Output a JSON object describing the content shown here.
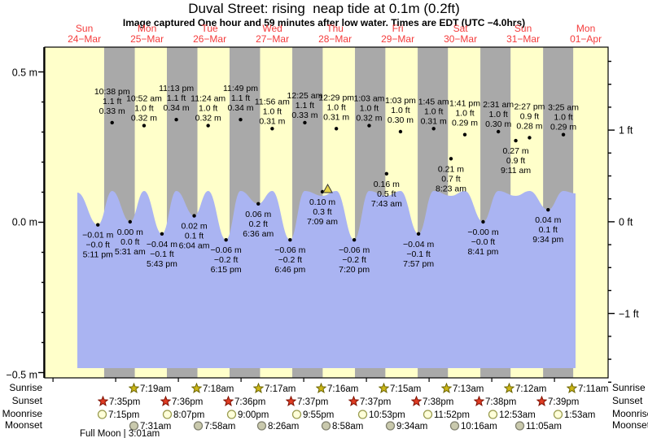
{
  "title": "Duval Street: rising  neap tide at 0.1m (0.2ft)",
  "subtitle": "Image captured One hour and 59 minutes after low water. Times are EDT (UTC −4.0hrs)",
  "chart_data": {
    "type": "area",
    "title": "Duval Street: rising  neap tide at 0.1m (0.2ft)",
    "x_axis_days": [
      {
        "dow": "Sun",
        "date": "24−Mar"
      },
      {
        "dow": "Mon",
        "date": "25−Mar"
      },
      {
        "dow": "Tue",
        "date": "26−Mar"
      },
      {
        "dow": "Wed",
        "date": "27−Mar"
      },
      {
        "dow": "Thu",
        "date": "28−Mar"
      },
      {
        "dow": "Fri",
        "date": "29−Mar"
      },
      {
        "dow": "Sat",
        "date": "30−Mar"
      },
      {
        "dow": "Sun",
        "date": "31−Mar"
      },
      {
        "dow": "Mon",
        "date": "01−Apr"
      }
    ],
    "y_axis_left_ticks": [
      "0.5 m",
      "0.0 m",
      "−0.5 m"
    ],
    "y_axis_right_ticks": [
      "1 ft",
      "0 ft",
      "−1 ft"
    ],
    "ylim_m": [
      -0.52,
      0.58
    ],
    "grid": false,
    "tide_events": [
      {
        "day": 0,
        "time": "5:11 pm",
        "type": "low",
        "value_m": -0.01,
        "label_m": "−0.01 m",
        "label_ft": "−0.0 ft"
      },
      {
        "day": 0,
        "time": "10:38 pm",
        "type": "high",
        "value_m": 0.33,
        "label_m": "0.33 m",
        "label_ft": "1.1 ft"
      },
      {
        "day": 1,
        "time": "5:31 am",
        "type": "low",
        "value_m": 0.0,
        "label_m": "0.00 m",
        "label_ft": "0.0 ft"
      },
      {
        "day": 1,
        "time": "10:52 am",
        "type": "high",
        "value_m": 0.32,
        "label_m": "0.32 m",
        "label_ft": "1.0 ft"
      },
      {
        "day": 1,
        "time": "5:43 pm",
        "type": "low",
        "value_m": -0.04,
        "label_m": "−0.04 m",
        "label_ft": "−0.1 ft"
      },
      {
        "day": 1,
        "time": "11:13 pm",
        "type": "high",
        "value_m": 0.34,
        "label_m": "0.34 m",
        "label_ft": "1.1 ft"
      },
      {
        "day": 2,
        "time": "6:04 am",
        "type": "low",
        "value_m": 0.02,
        "label_m": "0.02 m",
        "label_ft": "0.1 ft"
      },
      {
        "day": 2,
        "time": "11:24 am",
        "type": "high",
        "value_m": 0.32,
        "label_m": "0.32 m",
        "label_ft": "1.0 ft"
      },
      {
        "day": 2,
        "time": "6:15 pm",
        "type": "low",
        "value_m": -0.06,
        "label_m": "−0.06 m",
        "label_ft": "−0.2 ft"
      },
      {
        "day": 2,
        "time": "11:49 pm",
        "type": "high",
        "value_m": 0.34,
        "label_m": "0.34 m",
        "label_ft": "1.1 ft"
      },
      {
        "day": 3,
        "time": "6:36 am",
        "type": "low",
        "value_m": 0.06,
        "label_m": "0.06 m",
        "label_ft": "0.2 ft"
      },
      {
        "day": 3,
        "time": "11:56 am",
        "type": "high",
        "value_m": 0.31,
        "label_m": "0.31 m",
        "label_ft": "1.0 ft"
      },
      {
        "day": 3,
        "time": "6:46 pm",
        "type": "low",
        "value_m": -0.06,
        "label_m": "−0.06 m",
        "label_ft": "−0.2 ft"
      },
      {
        "day": 4,
        "time": "12:25 am",
        "type": "high",
        "value_m": 0.33,
        "label_m": "0.33 m",
        "label_ft": "1.1 ft"
      },
      {
        "day": 4,
        "time": "7:09 am",
        "type": "low",
        "value_m": 0.1,
        "label_m": "0.10 m",
        "label_ft": "0.3 ft",
        "now": true
      },
      {
        "day": 4,
        "time": "12:29 pm",
        "type": "high",
        "value_m": 0.31,
        "label_m": "0.31 m",
        "label_ft": "1.0 ft"
      },
      {
        "day": 4,
        "time": "7:20 pm",
        "type": "low",
        "value_m": -0.06,
        "label_m": "−0.06 m",
        "label_ft": "−0.2 ft"
      },
      {
        "day": 5,
        "time": "1:03 am",
        "type": "high",
        "value_m": 0.32,
        "label_m": "0.32 m",
        "label_ft": "1.0 ft"
      },
      {
        "day": 5,
        "time": "7:43 am",
        "type": "low",
        "value_m": 0.16,
        "label_m": "0.16 m",
        "label_ft": "0.5 ft"
      },
      {
        "day": 5,
        "time": "1:03 pm",
        "type": "high",
        "value_m": 0.3,
        "label_m": "0.30 m",
        "label_ft": "1.0 ft"
      },
      {
        "day": 5,
        "time": "7:57 pm",
        "type": "low",
        "value_m": -0.04,
        "label_m": "−0.04 m",
        "label_ft": "−0.1 ft"
      },
      {
        "day": 6,
        "time": "1:45 am",
        "type": "high",
        "value_m": 0.31,
        "label_m": "0.31 m",
        "label_ft": "1.0 ft"
      },
      {
        "day": 6,
        "time": "8:23 am",
        "type": "low",
        "value_m": 0.21,
        "label_m": "0.21 m",
        "label_ft": "0.7 ft"
      },
      {
        "day": 6,
        "time": "1:41 pm",
        "type": "high",
        "value_m": 0.29,
        "label_m": "0.29 m",
        "label_ft": "1.0 ft"
      },
      {
        "day": 6,
        "time": "8:41 pm",
        "type": "low",
        "value_m": 0.0,
        "label_m": "−0.00 m",
        "label_ft": "−0.0 ft"
      },
      {
        "day": 7,
        "time": "2:31 am",
        "type": "high",
        "value_m": 0.3,
        "label_m": "0.30 m",
        "label_ft": "1.0 ft"
      },
      {
        "day": 7,
        "time": "9:11 am",
        "type": "low",
        "value_m": 0.27,
        "label_m": "0.27 m",
        "label_ft": "0.9 ft"
      },
      {
        "day": 7,
        "time": "2:27 pm",
        "type": "high",
        "value_m": 0.28,
        "label_m": "0.28 m",
        "label_ft": "0.9 ft"
      },
      {
        "day": 7,
        "time": "9:34 pm",
        "type": "low",
        "value_m": 0.04,
        "label_m": "0.04 m",
        "label_ft": "0.1 ft"
      },
      {
        "day": 8,
        "time": "3:25 am",
        "type": "high",
        "value_m": 0.29,
        "label_m": "0.29 m",
        "label_ft": "1.0 ft"
      }
    ],
    "now_marker": {
      "time": "7:09 am",
      "day": 4,
      "height_m": 0.1
    }
  },
  "astro": {
    "rows": [
      {
        "label": "Sunrise",
        "icon": "sunrise-star",
        "times": [
          {
            "day": 1,
            "time": "7:19am"
          },
          {
            "day": 2,
            "time": "7:18am"
          },
          {
            "day": 3,
            "time": "7:17am"
          },
          {
            "day": 4,
            "time": "7:16am"
          },
          {
            "day": 5,
            "time": "7:15am"
          },
          {
            "day": 6,
            "time": "7:13am"
          },
          {
            "day": 7,
            "time": "7:12am"
          },
          {
            "day": 8,
            "time": "7:11am"
          }
        ]
      },
      {
        "label": "Sunset",
        "icon": "sunset-star",
        "times": [
          {
            "day": 0,
            "time": "7:35pm"
          },
          {
            "day": 1,
            "time": "7:36pm"
          },
          {
            "day": 2,
            "time": "7:36pm"
          },
          {
            "day": 3,
            "time": "7:37pm"
          },
          {
            "day": 4,
            "time": "7:37pm"
          },
          {
            "day": 5,
            "time": "7:38pm"
          },
          {
            "day": 6,
            "time": "7:38pm"
          },
          {
            "day": 7,
            "time": "7:39pm"
          }
        ]
      },
      {
        "label": "Moonrise",
        "icon": "moonrise-circle",
        "times": [
          {
            "day": 0,
            "time": "7:15pm"
          },
          {
            "day": 1,
            "time": "8:07pm"
          },
          {
            "day": 2,
            "time": "9:00pm"
          },
          {
            "day": 3,
            "time": "9:55pm"
          },
          {
            "day": 4,
            "time": "10:53pm"
          },
          {
            "day": 5,
            "time": "11:52pm"
          },
          {
            "day": 7,
            "time": "12:53am"
          },
          {
            "day": 8,
            "time": "1:53am"
          }
        ]
      },
      {
        "label": "Moonset",
        "icon": "moonset-circle",
        "times": [
          {
            "day": 1,
            "time": "7:31am"
          },
          {
            "day": 2,
            "time": "7:58am"
          },
          {
            "day": 3,
            "time": "8:26am"
          },
          {
            "day": 4,
            "time": "8:58am"
          },
          {
            "day": 5,
            "time": "9:34am"
          },
          {
            "day": 6,
            "time": "10:16am"
          },
          {
            "day": 7,
            "time": "11:05am"
          }
        ]
      }
    ],
    "full_moon": "Full Moon | 3:01am"
  },
  "colors": {
    "day_band": "#ffffca",
    "night_band": "#a9a9a9",
    "water": "#aab4f2",
    "day_label_red": "#f43b3b",
    "now_marker_fill": "#e6d44a",
    "sunrise_star": "#cdb718",
    "sunset_star": "#e03c23",
    "moonrise_fill": "#ffffd9",
    "moonset_fill": "#c9c9ad"
  }
}
